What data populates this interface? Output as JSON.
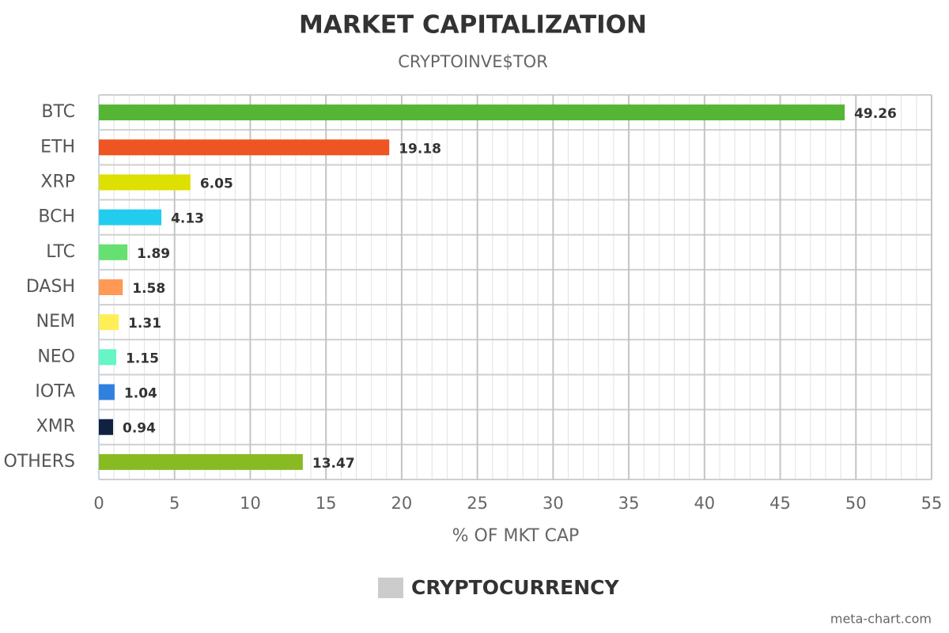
{
  "chart_data": {
    "type": "bar",
    "orientation": "horizontal",
    "title": "MARKET CAPITALIZATION",
    "subtitle": "CRYPTOINVE$TOR",
    "x_label": "% OF MKT CAP",
    "categories": [
      "BTC",
      "ETH",
      "XRP",
      "BCH",
      "LTC",
      "DASH",
      "NEM",
      "NEO",
      "IOTA",
      "XMR",
      "OTHERS"
    ],
    "series": [
      {
        "name": "CRYPTOCURRENCY",
        "color": "#cccccc",
        "colors": [
          "#55b535",
          "#ee5522",
          "#dde000",
          "#22ccee",
          "#66e070",
          "#ff9955",
          "#ffee55",
          "#66f5c5",
          "#3080dd",
          "#112240",
          "#88bb22"
        ],
        "values": [
          49.26,
          19.18,
          6.05,
          4.13,
          1.89,
          1.58,
          1.31,
          1.15,
          1.04,
          0.94,
          13.47
        ]
      }
    ],
    "xlim": [
      0,
      55
    ],
    "xticks": [
      0,
      5,
      10,
      15,
      20,
      25,
      30,
      35,
      40,
      45,
      50,
      55
    ],
    "grid": true,
    "legend": "bottom",
    "watermark": "meta-chart.com"
  }
}
